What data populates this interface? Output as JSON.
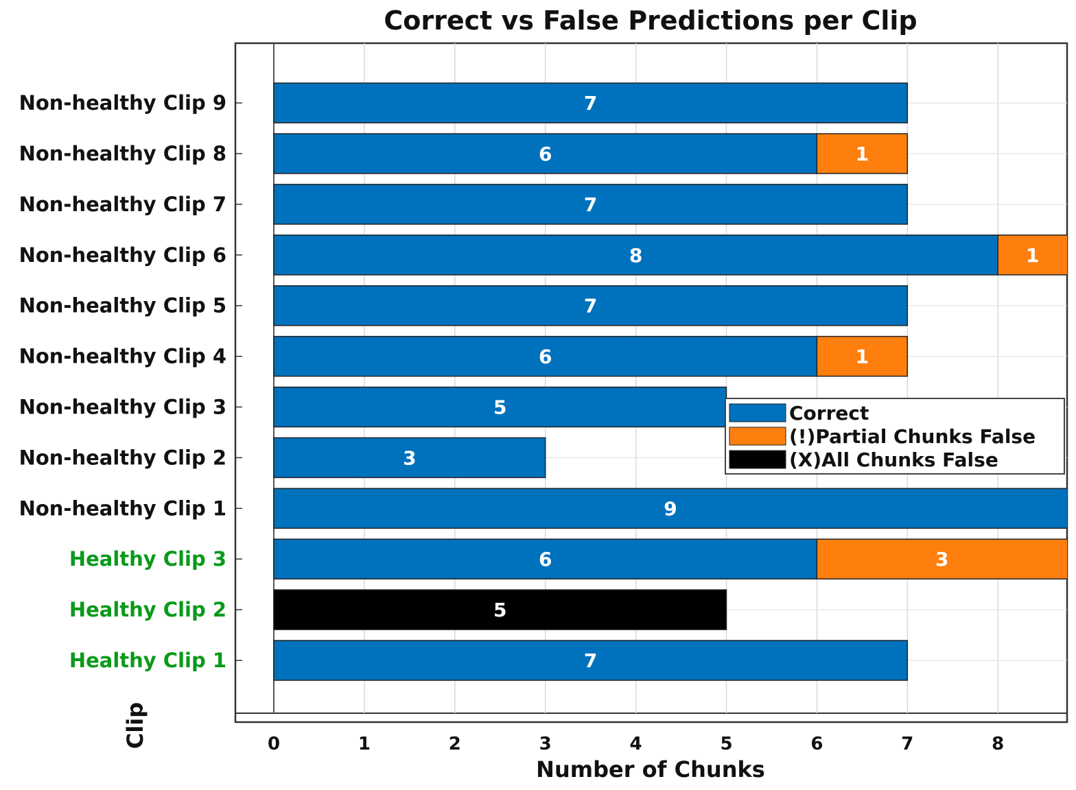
{
  "chart_data": {
    "type": "bar",
    "orientation": "horizontal",
    "stacked": true,
    "title": "Correct vs False Predictions per Clip",
    "xlabel": "Number of Chunks",
    "ylabel": "Clip",
    "xlim": [
      0,
      8.75
    ],
    "xticks": [
      "0",
      "1",
      "2",
      "3",
      "4",
      "5",
      "6",
      "7",
      "8"
    ],
    "grid": true,
    "legend_position": "right",
    "categories": [
      "Healthy Clip 1",
      "Healthy Clip 2",
      "Healthy Clip 3",
      "Non-healthy Clip 1",
      "Non-healthy Clip 2",
      "Non-healthy Clip 3",
      "Non-healthy Clip 4",
      "Non-healthy Clip 5",
      "Non-healthy Clip 6",
      "Non-healthy Clip 7",
      "Non-healthy Clip 8",
      "Non-healthy Clip 9"
    ],
    "category_colors": [
      "#0a9a1a",
      "#0a9a1a",
      "#0a9a1a",
      "#111111",
      "#111111",
      "#111111",
      "#111111",
      "#111111",
      "#111111",
      "#111111",
      "#111111",
      "#111111"
    ],
    "series": [
      {
        "name": "Correct",
        "color": "#0072bd",
        "values": [
          7,
          0,
          6,
          9,
          3,
          5,
          6,
          7,
          8,
          7,
          6,
          7
        ]
      },
      {
        "name": "(!)Partial Chunks False",
        "color": "#ff7f0e",
        "values": [
          0,
          0,
          3,
          0,
          0,
          0,
          1,
          0,
          1,
          0,
          1,
          0
        ]
      },
      {
        "name": "(X)All Chunks False",
        "color": "#000000",
        "values": [
          0,
          5,
          0,
          0,
          0,
          0,
          0,
          0,
          0,
          0,
          0,
          0
        ]
      }
    ]
  }
}
